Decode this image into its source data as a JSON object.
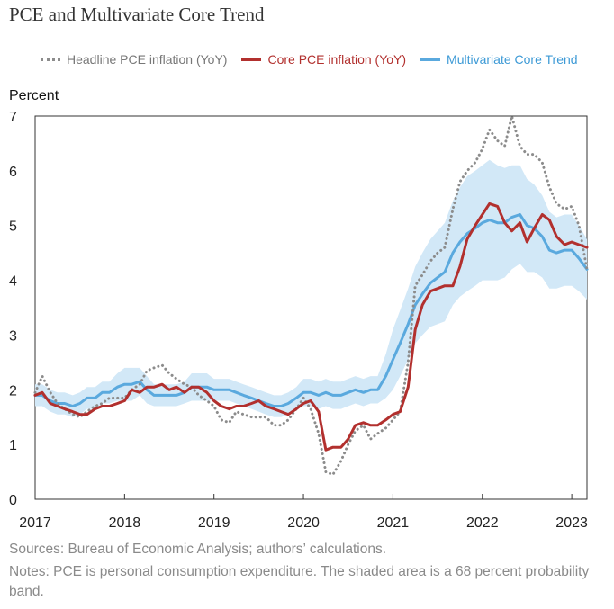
{
  "chart_data": {
    "type": "line",
    "title": "PCE and Multivariate Core Trend",
    "ylabel": "Percent",
    "xlabel": "",
    "ylim": [
      0,
      7
    ],
    "xlim": [
      2017,
      2023.17
    ],
    "yticks": [
      0,
      1,
      2,
      3,
      4,
      5,
      6,
      7
    ],
    "xticks": [
      2017,
      2018,
      2019,
      2020,
      2021,
      2022,
      2023
    ],
    "legend": "top",
    "series": [
      {
        "name": "Headline PCE inflation (YoY)",
        "color": "#8c8c8c",
        "style": "dotted",
        "x": [
          2017.0,
          2017.08,
          2017.17,
          2017.25,
          2017.33,
          2017.42,
          2017.5,
          2017.58,
          2017.67,
          2017.75,
          2017.83,
          2017.92,
          2018.0,
          2018.08,
          2018.17,
          2018.25,
          2018.33,
          2018.42,
          2018.5,
          2018.58,
          2018.67,
          2018.75,
          2018.83,
          2018.92,
          2019.0,
          2019.08,
          2019.17,
          2019.25,
          2019.33,
          2019.42,
          2019.5,
          2019.58,
          2019.67,
          2019.75,
          2019.83,
          2019.92,
          2020.0,
          2020.08,
          2020.17,
          2020.25,
          2020.33,
          2020.42,
          2020.5,
          2020.58,
          2020.67,
          2020.75,
          2020.83,
          2020.92,
          2021.0,
          2021.08,
          2021.17,
          2021.25,
          2021.33,
          2021.42,
          2021.5,
          2021.58,
          2021.67,
          2021.75,
          2021.83,
          2021.92,
          2022.0,
          2022.08,
          2022.17,
          2022.25,
          2022.33,
          2022.42,
          2022.5,
          2022.58,
          2022.67,
          2022.75,
          2022.83,
          2022.92,
          2023.0,
          2023.08,
          2023.17
        ],
        "values": [
          1.95,
          2.25,
          1.95,
          1.75,
          1.65,
          1.55,
          1.5,
          1.6,
          1.7,
          1.75,
          1.85,
          1.85,
          1.85,
          2.0,
          2.1,
          2.35,
          2.4,
          2.45,
          2.3,
          2.2,
          2.1,
          2.05,
          1.9,
          1.8,
          1.7,
          1.45,
          1.4,
          1.6,
          1.55,
          1.5,
          1.5,
          1.5,
          1.35,
          1.35,
          1.45,
          1.65,
          1.85,
          1.65,
          1.2,
          0.5,
          0.45,
          0.7,
          1.0,
          1.25,
          1.35,
          1.1,
          1.2,
          1.3,
          1.45,
          1.6,
          2.5,
          3.9,
          4.1,
          4.35,
          4.5,
          4.6,
          5.3,
          5.8,
          6.0,
          6.15,
          6.4,
          6.75,
          6.55,
          6.45,
          7.0,
          6.45,
          6.3,
          6.3,
          6.15,
          5.7,
          5.4,
          5.3,
          5.35,
          5.0,
          4.2
        ]
      },
      {
        "name": "Core PCE inflation (YoY)",
        "color": "#b2302e",
        "style": "solid",
        "x": [
          2017.0,
          2017.08,
          2017.17,
          2017.25,
          2017.33,
          2017.42,
          2017.5,
          2017.58,
          2017.67,
          2017.75,
          2017.83,
          2017.92,
          2018.0,
          2018.08,
          2018.17,
          2018.25,
          2018.33,
          2018.42,
          2018.5,
          2018.58,
          2018.67,
          2018.75,
          2018.83,
          2018.92,
          2019.0,
          2019.08,
          2019.17,
          2019.25,
          2019.33,
          2019.42,
          2019.5,
          2019.58,
          2019.67,
          2019.75,
          2019.83,
          2019.92,
          2020.0,
          2020.08,
          2020.17,
          2020.25,
          2020.33,
          2020.42,
          2020.5,
          2020.58,
          2020.67,
          2020.75,
          2020.83,
          2020.92,
          2021.0,
          2021.08,
          2021.17,
          2021.25,
          2021.33,
          2021.42,
          2021.5,
          2021.58,
          2021.67,
          2021.75,
          2021.83,
          2021.92,
          2022.0,
          2022.08,
          2022.17,
          2022.25,
          2022.33,
          2022.42,
          2022.5,
          2022.58,
          2022.67,
          2022.75,
          2022.83,
          2022.92,
          2023.0,
          2023.08,
          2023.17
        ],
        "values": [
          1.9,
          1.95,
          1.75,
          1.7,
          1.65,
          1.6,
          1.55,
          1.55,
          1.65,
          1.7,
          1.7,
          1.75,
          1.8,
          2.0,
          1.95,
          2.05,
          2.05,
          2.1,
          2.0,
          2.05,
          1.95,
          2.05,
          2.05,
          1.95,
          1.8,
          1.7,
          1.65,
          1.7,
          1.7,
          1.75,
          1.8,
          1.7,
          1.65,
          1.6,
          1.55,
          1.65,
          1.75,
          1.8,
          1.6,
          0.9,
          0.95,
          0.95,
          1.1,
          1.35,
          1.4,
          1.35,
          1.35,
          1.45,
          1.55,
          1.6,
          2.05,
          3.1,
          3.55,
          3.8,
          3.85,
          3.9,
          3.9,
          4.25,
          4.75,
          5.0,
          5.2,
          5.4,
          5.35,
          5.05,
          4.9,
          5.05,
          4.7,
          4.95,
          5.2,
          5.1,
          4.8,
          4.65,
          4.7,
          4.65,
          4.6
        ]
      },
      {
        "name": "Multivariate Core Trend",
        "color": "#5aa9de",
        "style": "solid",
        "x": [
          2017.0,
          2017.08,
          2017.17,
          2017.25,
          2017.33,
          2017.42,
          2017.5,
          2017.58,
          2017.67,
          2017.75,
          2017.83,
          2017.92,
          2018.0,
          2018.08,
          2018.17,
          2018.25,
          2018.33,
          2018.42,
          2018.5,
          2018.58,
          2018.67,
          2018.75,
          2018.83,
          2018.92,
          2019.0,
          2019.08,
          2019.17,
          2019.25,
          2019.33,
          2019.42,
          2019.5,
          2019.58,
          2019.67,
          2019.75,
          2019.83,
          2019.92,
          2020.0,
          2020.08,
          2020.17,
          2020.25,
          2020.33,
          2020.42,
          2020.5,
          2020.58,
          2020.67,
          2020.75,
          2020.83,
          2020.92,
          2021.0,
          2021.08,
          2021.17,
          2021.25,
          2021.33,
          2021.42,
          2021.5,
          2021.58,
          2021.67,
          2021.75,
          2021.83,
          2021.92,
          2022.0,
          2022.08,
          2022.17,
          2022.25,
          2022.33,
          2022.42,
          2022.5,
          2022.58,
          2022.67,
          2022.75,
          2022.83,
          2022.92,
          2023.0,
          2023.08,
          2023.17
        ],
        "values": [
          1.9,
          1.9,
          1.8,
          1.75,
          1.75,
          1.7,
          1.75,
          1.85,
          1.85,
          1.95,
          1.95,
          2.05,
          2.1,
          2.1,
          2.15,
          2.0,
          1.9,
          1.9,
          1.9,
          1.9,
          1.95,
          2.05,
          2.05,
          2.05,
          2.0,
          2.0,
          2.0,
          1.95,
          1.9,
          1.85,
          1.8,
          1.75,
          1.7,
          1.7,
          1.75,
          1.85,
          1.95,
          1.95,
          1.9,
          1.95,
          1.9,
          1.9,
          1.95,
          2.0,
          1.95,
          2.0,
          2.0,
          2.25,
          2.55,
          2.85,
          3.2,
          3.55,
          3.75,
          3.95,
          4.05,
          4.15,
          4.5,
          4.7,
          4.85,
          4.95,
          5.05,
          5.1,
          5.05,
          5.05,
          5.15,
          5.2,
          5.0,
          4.95,
          4.8,
          4.55,
          4.5,
          4.55,
          4.55,
          4.4,
          4.2
        ]
      }
    ],
    "band": {
      "name": "68 percent probability band",
      "color": "#d2e8f7",
      "x": [
        2017.0,
        2017.08,
        2017.17,
        2017.25,
        2017.33,
        2017.42,
        2017.5,
        2017.58,
        2017.67,
        2017.75,
        2017.83,
        2017.92,
        2018.0,
        2018.08,
        2018.17,
        2018.25,
        2018.33,
        2018.42,
        2018.5,
        2018.58,
        2018.67,
        2018.75,
        2018.83,
        2018.92,
        2019.0,
        2019.08,
        2019.17,
        2019.25,
        2019.33,
        2019.42,
        2019.5,
        2019.58,
        2019.67,
        2019.75,
        2019.83,
        2019.92,
        2020.0,
        2020.08,
        2020.17,
        2020.25,
        2020.33,
        2020.42,
        2020.5,
        2020.58,
        2020.67,
        2020.75,
        2020.83,
        2020.92,
        2021.0,
        2021.08,
        2021.17,
        2021.25,
        2021.33,
        2021.42,
        2021.5,
        2021.58,
        2021.67,
        2021.75,
        2021.83,
        2021.92,
        2022.0,
        2022.08,
        2022.17,
        2022.25,
        2022.33,
        2022.42,
        2022.5,
        2022.58,
        2022.67,
        2022.75,
        2022.83,
        2022.92,
        2023.0,
        2023.08,
        2023.17
      ],
      "upper": [
        2.1,
        2.1,
        2.0,
        1.95,
        1.95,
        1.9,
        1.95,
        2.05,
        2.05,
        2.15,
        2.15,
        2.3,
        2.4,
        2.4,
        2.4,
        2.25,
        2.1,
        2.1,
        2.1,
        2.1,
        2.15,
        2.3,
        2.3,
        2.3,
        2.2,
        2.2,
        2.2,
        2.15,
        2.1,
        2.05,
        2.0,
        1.95,
        1.9,
        1.9,
        1.95,
        2.05,
        2.2,
        2.2,
        2.15,
        2.2,
        2.15,
        2.15,
        2.2,
        2.25,
        2.2,
        2.25,
        2.25,
        2.65,
        3.1,
        3.45,
        3.85,
        4.25,
        4.5,
        4.75,
        4.9,
        5.05,
        5.45,
        5.7,
        5.9,
        6.0,
        6.1,
        6.2,
        6.1,
        6.05,
        6.1,
        6.1,
        5.85,
        5.75,
        5.55,
        5.25,
        5.15,
        5.2,
        5.2,
        5.0,
        4.75
      ],
      "lower": [
        1.7,
        1.7,
        1.6,
        1.55,
        1.55,
        1.5,
        1.55,
        1.65,
        1.65,
        1.75,
        1.75,
        1.8,
        1.8,
        1.8,
        1.9,
        1.75,
        1.7,
        1.7,
        1.7,
        1.7,
        1.75,
        1.8,
        1.8,
        1.8,
        1.8,
        1.8,
        1.8,
        1.75,
        1.7,
        1.65,
        1.6,
        1.55,
        1.5,
        1.5,
        1.55,
        1.65,
        1.7,
        1.7,
        1.65,
        1.7,
        1.65,
        1.65,
        1.7,
        1.75,
        1.7,
        1.75,
        1.75,
        1.85,
        2.0,
        2.25,
        2.55,
        2.85,
        3.0,
        3.15,
        3.2,
        3.25,
        3.55,
        3.7,
        3.8,
        3.9,
        4.0,
        4.0,
        4.0,
        4.05,
        4.2,
        4.3,
        4.15,
        4.15,
        4.05,
        3.85,
        3.85,
        3.9,
        3.9,
        3.8,
        3.65
      ]
    }
  },
  "notes": {
    "sources": "Sources: Bureau of Economic Analysis; authors’ calculations.",
    "notes": "Notes: PCE is personal consumption expenditure. The shaded area is a 68 percent probability band."
  }
}
